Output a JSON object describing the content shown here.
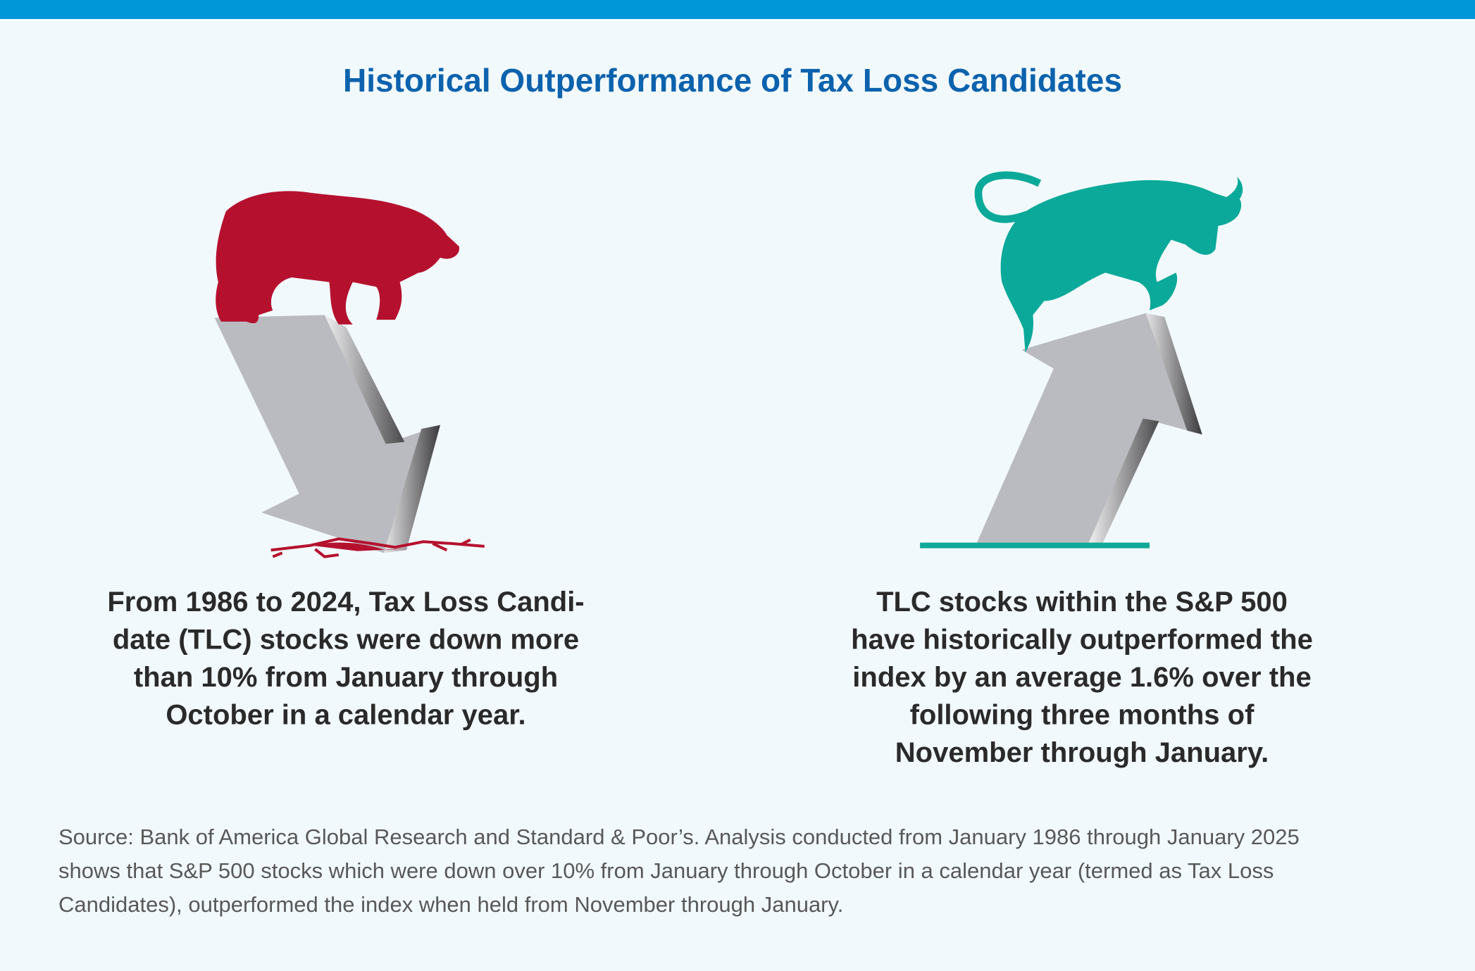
{
  "title": "Historical Outperformance of Tax Loss Candidates",
  "left_text": {
    "lines": [
      "From 1986 to 2024, Tax Loss Candi-",
      "date (TLC) stocks were down more",
      "than 10% from January through",
      "October in a calendar year."
    ]
  },
  "right_text": {
    "lines": [
      "TLC stocks within the S&P 500",
      "have historically outperformed the",
      "index by an average 1.6% over the",
      "following three months of",
      "November through January."
    ]
  },
  "source": {
    "lines": [
      "Source: Bank of America Global Research and Standard & Poor’s. Analysis conducted from January 1986 through January 2025",
      "shows that S&P 500 stocks which were down over 10% from January through October in a calendar year (termed as Tax Loss",
      "Candidates), outperformed the index when held from November through January."
    ]
  }
}
